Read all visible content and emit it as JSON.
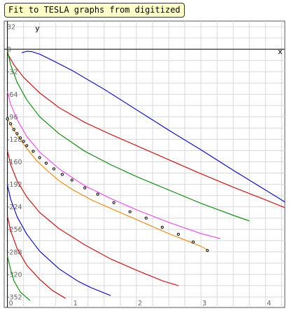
{
  "title": "Fit to TESLA graphs from digitized",
  "chart_data": {
    "type": "line",
    "xlabel": "x",
    "ylabel": "y",
    "xlim": [
      -0.05,
      4.3
    ],
    "ylim": [
      -367,
      40
    ],
    "x_ticks": [
      "0",
      "1",
      "2",
      "3",
      "4"
    ],
    "x_tick_values": [
      0,
      1,
      2,
      3,
      4
    ],
    "y_ticks": [
      "32",
      "0",
      "-32",
      "-64",
      "-96",
      "-128",
      "-160",
      "-192",
      "-224",
      "-256",
      "-288",
      "-320",
      "-352"
    ],
    "y_tick_values": [
      32,
      0,
      -32,
      -64,
      -96,
      -128,
      -160,
      -192,
      -224,
      -256,
      -288,
      -320,
      -352
    ],
    "x_minor_step": 0.25,
    "y_minor_step": 16,
    "grid": true,
    "series": [
      {
        "color": "#0000cc",
        "x": [
          0.22,
          0.3,
          0.38,
          0.5,
          0.7,
          1.0,
          1.5,
          2.0,
          2.5,
          3.0,
          3.5,
          4.0,
          4.3
        ],
        "y": [
          -5,
          -3,
          -3.5,
          -7,
          -16,
          -30,
          -57,
          -86,
          -115,
          -143,
          -172,
          -200,
          -217
        ]
      },
      {
        "color": "#cc0000",
        "x": [
          0.0,
          0.1,
          0.25,
          0.5,
          0.8,
          1.2,
          1.6,
          2.0,
          2.5,
          3.0,
          3.5,
          4.0,
          4.3
        ],
        "y": [
          -6,
          -22,
          -40,
          -62,
          -83,
          -104,
          -121,
          -137,
          -157,
          -177,
          -196,
          -214,
          -225
        ]
      },
      {
        "color": "#008800",
        "x": [
          0.0,
          0.05,
          0.15,
          0.3,
          0.5,
          0.8,
          1.2,
          1.6,
          2.0,
          2.5,
          3.0,
          3.5,
          3.75
        ],
        "y": [
          -2,
          -22,
          -47,
          -72,
          -96,
          -120,
          -145,
          -164,
          -181,
          -200,
          -219,
          -236,
          -244
        ]
      },
      {
        "color": "#ee44ee",
        "x": [
          0.0,
          0.05,
          0.15,
          0.3,
          0.5,
          0.8,
          1.2,
          1.6,
          2.0,
          2.5,
          3.0,
          3.3
        ],
        "y": [
          -60,
          -78,
          -100,
          -124,
          -146,
          -170,
          -194,
          -212,
          -228,
          -246,
          -262,
          -269
        ]
      },
      {
        "color": "#cc0000",
        "x": [
          0.0,
          0.05,
          0.15,
          0.3,
          0.5,
          0.8,
          1.2,
          1.6,
          2.0,
          2.4,
          2.65
        ],
        "y": [
          -144,
          -164,
          -187,
          -210,
          -232,
          -255,
          -278,
          -298,
          -314,
          -329,
          -336
        ]
      },
      {
        "color": "#0000cc",
        "x": [
          0.0,
          0.05,
          0.15,
          0.3,
          0.5,
          0.8,
          1.1,
          1.3,
          1.6
        ],
        "y": [
          -193,
          -213,
          -238,
          -263,
          -287,
          -312,
          -330,
          -339,
          -350
        ]
      },
      {
        "color": "#cc0000",
        "x": [
          0.0,
          0.05,
          0.15,
          0.3,
          0.5,
          0.7,
          0.9
        ],
        "y": [
          -237,
          -258,
          -283,
          -307,
          -327,
          -343,
          -354
        ]
      },
      {
        "color": "#008800",
        "x": [
          0.0,
          0.05,
          0.1,
          0.2,
          0.35
        ],
        "y": [
          -294,
          -313,
          -329,
          -345,
          -357
        ]
      },
      {
        "color": "#ee8800",
        "x": [
          0.0,
          0.1,
          0.2,
          0.3,
          0.45,
          0.6,
          0.8,
          1.0,
          1.3,
          1.6,
          2.0,
          2.5,
          3.0,
          3.1
        ],
        "y": [
          -98,
          -115,
          -128,
          -141,
          -158,
          -171,
          -187,
          -199,
          -214,
          -226,
          -242,
          -262,
          -280,
          -285
        ]
      }
    ],
    "points": {
      "x": [
        0.0,
        0.05,
        0.1,
        0.15,
        0.2,
        0.25,
        0.3,
        0.4,
        0.5,
        0.6,
        0.72,
        0.85,
        1.0,
        1.2,
        1.4,
        1.65,
        1.9,
        2.15,
        2.4,
        2.65,
        2.88,
        3.1
      ],
      "y": [
        -99,
        -106,
        -114,
        -120,
        -126,
        -131,
        -137,
        -145,
        -154,
        -162,
        -170,
        -178,
        -186,
        -197,
        -206,
        -218,
        -231,
        -240,
        -253,
        -263,
        -274,
        -286
      ],
      "color": "#000000"
    }
  }
}
